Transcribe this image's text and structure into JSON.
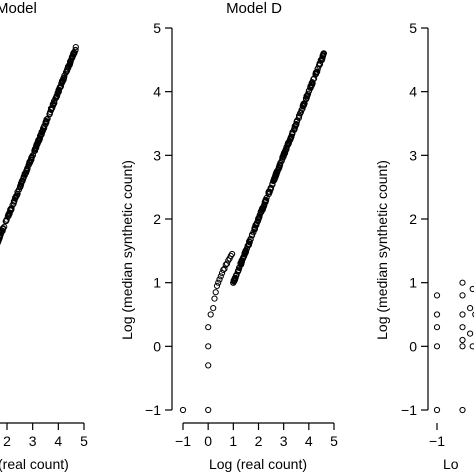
{
  "chart_data": [
    {
      "type": "scatter",
      "title": "Model",
      "xlabel": "(real count)",
      "ylabel": "",
      "xticks": [
        2,
        3,
        4,
        5
      ],
      "yticks": [],
      "xlim": [
        -1.2,
        5.2
      ],
      "ylim": [
        -1.15,
        5.2
      ],
      "series": [
        {
          "points": []
        }
      ]
    },
    {
      "type": "scatter",
      "title": "Model D",
      "xlabel": "Log (real count)",
      "ylabel": "Log (median synthetic count)",
      "xticks": [
        -1,
        0,
        1,
        2,
        3,
        4,
        5
      ],
      "yticks": [
        -1,
        0,
        1,
        2,
        3,
        4,
        5
      ],
      "xlim": [
        -1.2,
        5.2
      ],
      "ylim": [
        -1.15,
        5.2
      ],
      "series": [
        {
          "points": []
        }
      ]
    },
    {
      "type": "scatter",
      "title": "",
      "xlabel": "Lo",
      "ylabel": "Log (median synthetic count)",
      "xticks": [
        -1
      ],
      "yticks": [
        -1,
        0,
        1,
        2,
        3,
        4,
        5
      ],
      "xlim": [
        -1.2,
        5.2
      ],
      "ylim": [
        -1.15,
        5.2
      ],
      "series": [
        {
          "points": []
        }
      ]
    }
  ]
}
